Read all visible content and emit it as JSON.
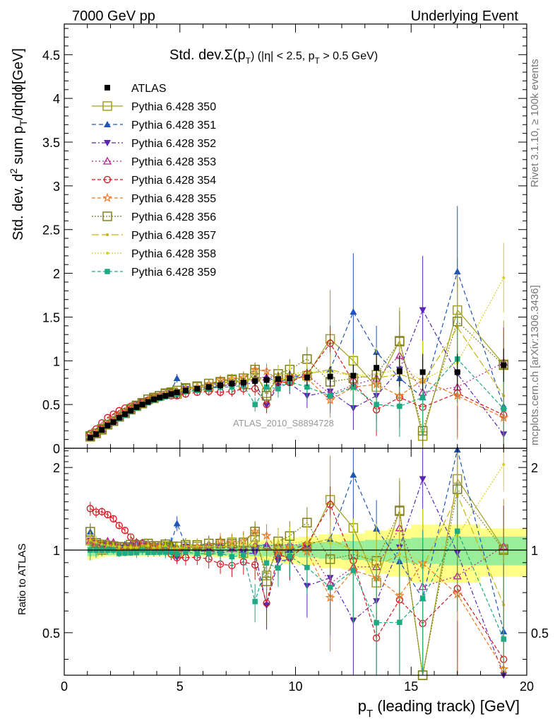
{
  "header": {
    "left": "7000 GeV pp",
    "right": "Underlying Event"
  },
  "side_labels": {
    "top": "Rivet 3.1.10, ≥ 100k events",
    "bottom": "mcplots.cern.ch [arXiv:1306.3436]"
  },
  "chart_data": {
    "type": "line",
    "title": "Std. dev.Σ(pT) (|η| < 2.5, pT > 0.5 GeV)",
    "title_parts": {
      "main": "Std. dev.",
      "sigma": "Σ(p",
      "sub": "T",
      "rest": ") (|η| < 2.5, p",
      "sub2": "T",
      "rest2": " > 0.5 GeV)"
    },
    "watermark": "ATLAS_2010_S8894728",
    "xlabel": {
      "main": "p",
      "sub": "T",
      "rest": " (leading track) [GeV]"
    },
    "ylabel_main": {
      "part1": "Std. dev. d",
      "sup": "2",
      "part2": " sum p",
      "sub": "T",
      "part3": "/dηdϕ[GeV]"
    },
    "ylabel_ratio": "Ratio to ATLAS",
    "xlim": [
      0,
      20
    ],
    "ylim": [
      0,
      4.85
    ],
    "ratio_ylim": [
      0.35,
      2.35
    ],
    "x_ticks": [
      0,
      5,
      10,
      15,
      20
    ],
    "y_ticks": [
      0,
      0.5,
      1,
      1.5,
      2,
      2.5,
      3,
      3.5,
      4,
      4.5
    ],
    "y_tick_labels": [
      "0",
      "0.5",
      "1",
      "1.5",
      "2",
      "2.5",
      "3",
      "3.5",
      "4",
      "4.5"
    ],
    "ratio_y_ticks": [
      0.5,
      1,
      2
    ],
    "x": [
      1.125,
      1.375,
      1.625,
      1.875,
      2.125,
      2.375,
      2.625,
      2.875,
      3.125,
      3.375,
      3.625,
      3.875,
      4.125,
      4.375,
      4.625,
      4.875,
      5.25,
      5.75,
      6.25,
      6.75,
      7.25,
      7.75,
      8.25,
      8.75,
      9.25,
      9.75,
      10.5,
      11.5,
      12.5,
      13.5,
      14.5,
      15.5,
      17,
      19
    ],
    "reference": {
      "name": "ATLAS",
      "values": [
        0.12,
        0.16,
        0.21,
        0.26,
        0.3,
        0.35,
        0.39,
        0.43,
        0.47,
        0.5,
        0.53,
        0.56,
        0.58,
        0.6,
        0.62,
        0.64,
        0.66,
        0.68,
        0.7,
        0.72,
        0.74,
        0.75,
        0.77,
        0.78,
        0.79,
        0.8,
        0.81,
        0.82,
        0.83,
        0.92,
        0.88,
        0.87,
        0.87,
        0.95
      ],
      "rel_err_inner": [
        0.05,
        0.05,
        0.04,
        0.04,
        0.04,
        0.04,
        0.04,
        0.04,
        0.04,
        0.04,
        0.04,
        0.04,
        0.04,
        0.04,
        0.04,
        0.04,
        0.04,
        0.04,
        0.04,
        0.04,
        0.04,
        0.04,
        0.05,
        0.05,
        0.05,
        0.05,
        0.06,
        0.07,
        0.08,
        0.09,
        0.1,
        0.11,
        0.12,
        0.12
      ],
      "rel_err_outer": [
        0.08,
        0.07,
        0.06,
        0.05,
        0.05,
        0.05,
        0.05,
        0.05,
        0.05,
        0.05,
        0.05,
        0.05,
        0.05,
        0.05,
        0.05,
        0.05,
        0.05,
        0.05,
        0.05,
        0.06,
        0.06,
        0.07,
        0.08,
        0.09,
        0.1,
        0.11,
        0.12,
        0.14,
        0.15,
        0.18,
        0.2,
        0.24,
        0.24,
        0.2
      ]
    },
    "series": [
      {
        "name": "Pythia 6.428 350",
        "color": "#a0a020",
        "marker": "open-square",
        "dash": "",
        "values": [
          0.13,
          0.17,
          0.21,
          0.27,
          0.31,
          0.36,
          0.4,
          0.44,
          0.48,
          0.51,
          0.56,
          0.57,
          0.6,
          0.62,
          0.64,
          0.62,
          0.68,
          0.7,
          0.7,
          0.76,
          0.79,
          0.73,
          0.86,
          0.63,
          0.8,
          0.78,
          0.83,
          1.25,
          1.0,
          0.7,
          1.23,
          0.14,
          1.58,
          0.96
        ],
        "err": [
          0.01,
          0.01,
          0.01,
          0.01,
          0.01,
          0.01,
          0.01,
          0.01,
          0.02,
          0.02,
          0.02,
          0.02,
          0.02,
          0.03,
          0.03,
          0.03,
          0.04,
          0.04,
          0.05,
          0.05,
          0.06,
          0.07,
          0.08,
          0.09,
          0.1,
          0.12,
          0.14,
          0.56,
          0.25,
          0.3,
          0.38,
          0.45,
          0.6,
          0.5
        ]
      },
      {
        "name": "Pythia 6.428 351",
        "color": "#1f55b4",
        "marker": "tri-up",
        "dash": "6,4",
        "values": [
          0.14,
          0.17,
          0.22,
          0.27,
          0.31,
          0.36,
          0.41,
          0.45,
          0.5,
          0.52,
          0.56,
          0.58,
          0.6,
          0.63,
          0.66,
          0.8,
          0.69,
          0.7,
          0.74,
          0.75,
          0.77,
          0.77,
          0.79,
          0.82,
          0.75,
          0.8,
          0.85,
          0.9,
          1.56,
          1.1,
          0.8,
          0.58,
          2.02,
          0.48
        ],
        "err": [
          0.01,
          0.01,
          0.01,
          0.01,
          0.01,
          0.01,
          0.01,
          0.01,
          0.02,
          0.02,
          0.02,
          0.02,
          0.02,
          0.03,
          0.03,
          0.05,
          0.04,
          0.04,
          0.05,
          0.05,
          0.06,
          0.07,
          0.08,
          0.09,
          0.1,
          0.12,
          0.14,
          0.2,
          0.67,
          0.3,
          0.35,
          0.45,
          0.75,
          0.5
        ]
      },
      {
        "name": "Pythia 6.428 352",
        "color": "#5a24b4",
        "marker": "tri-down",
        "dash": "6,3,2,3",
        "values": [
          0.13,
          0.17,
          0.22,
          0.27,
          0.31,
          0.35,
          0.4,
          0.44,
          0.48,
          0.52,
          0.55,
          0.57,
          0.6,
          0.6,
          0.63,
          0.6,
          0.68,
          0.67,
          0.7,
          0.7,
          0.74,
          0.73,
          0.75,
          0.49,
          0.72,
          0.74,
          0.6,
          0.65,
          0.46,
          0.6,
          0.9,
          1.58,
          0.85,
          0.16
        ],
        "err": [
          0.01,
          0.01,
          0.01,
          0.01,
          0.01,
          0.01,
          0.01,
          0.01,
          0.02,
          0.02,
          0.02,
          0.02,
          0.02,
          0.03,
          0.03,
          0.03,
          0.04,
          0.04,
          0.05,
          0.05,
          0.06,
          0.07,
          0.08,
          0.09,
          0.1,
          0.12,
          0.14,
          0.2,
          0.25,
          0.3,
          0.35,
          0.62,
          0.5,
          0.5
        ]
      },
      {
        "name": "Pythia 6.428 353",
        "color": "#b4248a",
        "marker": "open-tri",
        "dash": "2,3",
        "values": [
          0.13,
          0.17,
          0.22,
          0.28,
          0.32,
          0.36,
          0.4,
          0.45,
          0.48,
          0.52,
          0.55,
          0.58,
          0.6,
          0.62,
          0.64,
          0.65,
          0.67,
          0.7,
          0.71,
          0.75,
          0.75,
          0.77,
          0.8,
          0.81,
          0.82,
          0.84,
          0.84,
          0.62,
          0.72,
          0.8,
          1.06,
          0.64,
          0.7,
          0.98
        ],
        "err": [
          0.01,
          0.01,
          0.01,
          0.01,
          0.01,
          0.01,
          0.01,
          0.01,
          0.02,
          0.02,
          0.02,
          0.02,
          0.02,
          0.03,
          0.03,
          0.03,
          0.04,
          0.04,
          0.05,
          0.05,
          0.06,
          0.07,
          0.08,
          0.09,
          0.1,
          0.12,
          0.14,
          0.2,
          0.25,
          0.3,
          0.35,
          0.45,
          0.5,
          0.4
        ]
      },
      {
        "name": "Pythia 6.428 354",
        "color": "#d4161e",
        "marker": "open-circle",
        "dash": "5,3",
        "values": [
          0.17,
          0.22,
          0.29,
          0.35,
          0.39,
          0.43,
          0.46,
          0.48,
          0.5,
          0.53,
          0.55,
          0.57,
          0.58,
          0.6,
          0.6,
          0.6,
          0.62,
          0.64,
          0.65,
          0.64,
          0.65,
          0.68,
          0.68,
          0.5,
          0.76,
          0.75,
          0.85,
          1.2,
          0.76,
          0.44,
          0.58,
          0.47,
          0.63,
          0.38
        ],
        "err": [
          0.01,
          0.01,
          0.01,
          0.01,
          0.01,
          0.01,
          0.01,
          0.01,
          0.02,
          0.02,
          0.02,
          0.02,
          0.02,
          0.03,
          0.03,
          0.03,
          0.04,
          0.04,
          0.05,
          0.05,
          0.06,
          0.07,
          0.08,
          0.09,
          0.1,
          0.12,
          0.14,
          0.2,
          0.25,
          0.3,
          0.35,
          0.45,
          0.5,
          0.4
        ]
      },
      {
        "name": "Pythia 6.428 355",
        "color": "#f07820",
        "marker": "star",
        "dash": "5,3",
        "values": [
          0.13,
          0.17,
          0.21,
          0.27,
          0.31,
          0.35,
          0.39,
          0.44,
          0.47,
          0.51,
          0.55,
          0.58,
          0.6,
          0.62,
          0.63,
          0.64,
          0.68,
          0.7,
          0.73,
          0.78,
          0.79,
          0.81,
          0.9,
          0.88,
          0.78,
          0.82,
          0.8,
          0.55,
          0.7,
          0.73,
          0.6,
          0.78,
          0.6,
          0.35
        ],
        "err": [
          0.01,
          0.01,
          0.01,
          0.01,
          0.01,
          0.01,
          0.01,
          0.01,
          0.02,
          0.02,
          0.02,
          0.02,
          0.02,
          0.03,
          0.03,
          0.03,
          0.04,
          0.04,
          0.05,
          0.05,
          0.06,
          0.07,
          0.08,
          0.09,
          0.1,
          0.12,
          0.14,
          0.2,
          0.25,
          0.3,
          0.35,
          0.45,
          0.5,
          0.4
        ]
      },
      {
        "name": "Pythia 6.428 356",
        "color": "#808020",
        "marker": "open-square",
        "dash": "2,2",
        "values": [
          0.14,
          0.17,
          0.22,
          0.27,
          0.31,
          0.36,
          0.4,
          0.45,
          0.49,
          0.52,
          0.56,
          0.58,
          0.6,
          0.63,
          0.64,
          0.66,
          0.69,
          0.71,
          0.74,
          0.76,
          0.78,
          0.8,
          0.9,
          0.6,
          0.85,
          0.9,
          1.02,
          0.76,
          0.8,
          0.84,
          1.22,
          0.2,
          1.45,
          0.95
        ],
        "err": [
          0.01,
          0.01,
          0.01,
          0.01,
          0.01,
          0.01,
          0.01,
          0.01,
          0.02,
          0.02,
          0.02,
          0.02,
          0.02,
          0.03,
          0.03,
          0.03,
          0.04,
          0.04,
          0.05,
          0.05,
          0.06,
          0.07,
          0.08,
          0.09,
          0.1,
          0.12,
          0.14,
          0.2,
          0.25,
          0.3,
          0.35,
          0.45,
          0.55,
          0.4
        ]
      },
      {
        "name": "Pythia 6.428 357",
        "color": "#c8b414",
        "marker": "dot",
        "dash": "10,4",
        "values": [
          0.13,
          0.17,
          0.21,
          0.27,
          0.31,
          0.35,
          0.4,
          0.44,
          0.48,
          0.52,
          0.55,
          0.57,
          0.59,
          0.62,
          0.63,
          0.65,
          0.67,
          0.7,
          0.72,
          0.74,
          0.77,
          0.76,
          0.8,
          0.78,
          0.8,
          0.82,
          0.85,
          0.9,
          0.83,
          0.8,
          0.85,
          0.75,
          1.38,
          0.6
        ],
        "err": [
          0.01,
          0.01,
          0.01,
          0.01,
          0.01,
          0.01,
          0.01,
          0.01,
          0.02,
          0.02,
          0.02,
          0.02,
          0.02,
          0.03,
          0.03,
          0.03,
          0.04,
          0.04,
          0.05,
          0.05,
          0.06,
          0.07,
          0.08,
          0.09,
          0.1,
          0.12,
          0.14,
          0.2,
          0.25,
          0.3,
          0.35,
          0.45,
          0.6,
          0.4
        ]
      },
      {
        "name": "Pythia 6.428 358",
        "color": "#d2d21e",
        "marker": "dot",
        "dash": "2,2",
        "values": [
          0.13,
          0.17,
          0.22,
          0.27,
          0.31,
          0.36,
          0.4,
          0.44,
          0.48,
          0.51,
          0.55,
          0.57,
          0.6,
          0.62,
          0.63,
          0.65,
          0.68,
          0.7,
          0.72,
          0.74,
          0.76,
          0.78,
          0.8,
          0.7,
          0.84,
          0.85,
          0.87,
          0.87,
          0.83,
          0.85,
          0.9,
          0.78,
          0.98,
          1.95
        ],
        "err": [
          0.01,
          0.01,
          0.01,
          0.01,
          0.01,
          0.01,
          0.01,
          0.01,
          0.02,
          0.02,
          0.02,
          0.02,
          0.02,
          0.03,
          0.03,
          0.03,
          0.04,
          0.04,
          0.05,
          0.05,
          0.06,
          0.07,
          0.08,
          0.09,
          0.1,
          0.12,
          0.14,
          0.2,
          0.25,
          0.3,
          0.35,
          0.45,
          0.5,
          0.4
        ]
      },
      {
        "name": "Pythia 6.428 359",
        "color": "#1eaa82",
        "marker": "square",
        "dash": "5,3",
        "values": [
          0.12,
          0.16,
          0.21,
          0.26,
          0.3,
          0.34,
          0.38,
          0.42,
          0.46,
          0.5,
          0.52,
          0.55,
          0.57,
          0.59,
          0.61,
          0.62,
          0.65,
          0.66,
          0.68,
          0.7,
          0.7,
          0.72,
          0.5,
          0.7,
          0.68,
          0.76,
          0.7,
          0.6,
          0.7,
          0.5,
          0.48,
          0.58,
          1.02,
          0.45
        ],
        "err": [
          0.01,
          0.01,
          0.01,
          0.01,
          0.01,
          0.01,
          0.01,
          0.01,
          0.02,
          0.02,
          0.02,
          0.02,
          0.02,
          0.03,
          0.03,
          0.03,
          0.04,
          0.04,
          0.05,
          0.05,
          0.06,
          0.07,
          0.08,
          0.09,
          0.1,
          0.12,
          0.14,
          0.2,
          0.25,
          0.3,
          0.35,
          0.45,
          0.5,
          0.4
        ]
      }
    ]
  }
}
